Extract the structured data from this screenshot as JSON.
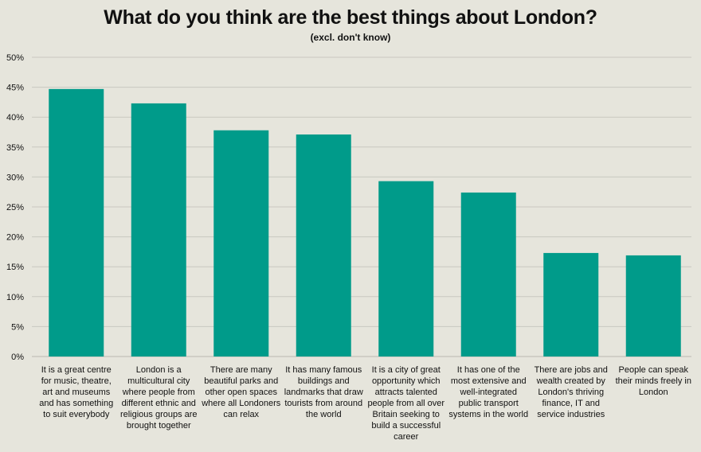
{
  "chart_data": {
    "type": "bar",
    "title": "What do you think are the best things about London?",
    "subtitle": "(excl. don't know)",
    "xlabel": "",
    "ylabel": "",
    "ylim": [
      0,
      50
    ],
    "ytick_step": 5,
    "ytick_suffix": "%",
    "grid": true,
    "bar_color": "#009b8a",
    "categories": [
      "It is a great centre for music, theatre, art and museums and has something to suit everybody",
      "London is a multicultural city where people from different ethnic and religious groups are brought together",
      "There are many beautiful parks and other open spaces where all Londoners can relax",
      "It has many famous buildings and landmarks that draw tourists from around the world",
      "It is a city of great opportunity which attracts talented people from all over Britain seeking to build a successful career",
      "It has one of the most extensive and well-integrated public transport systems in the world",
      "There are jobs and wealth created by London's thriving finance, IT and service industries",
      "People can speak their minds freely in London"
    ],
    "values": [
      44.7,
      42.3,
      37.8,
      37.1,
      29.3,
      27.4,
      17.3,
      16.9
    ]
  }
}
